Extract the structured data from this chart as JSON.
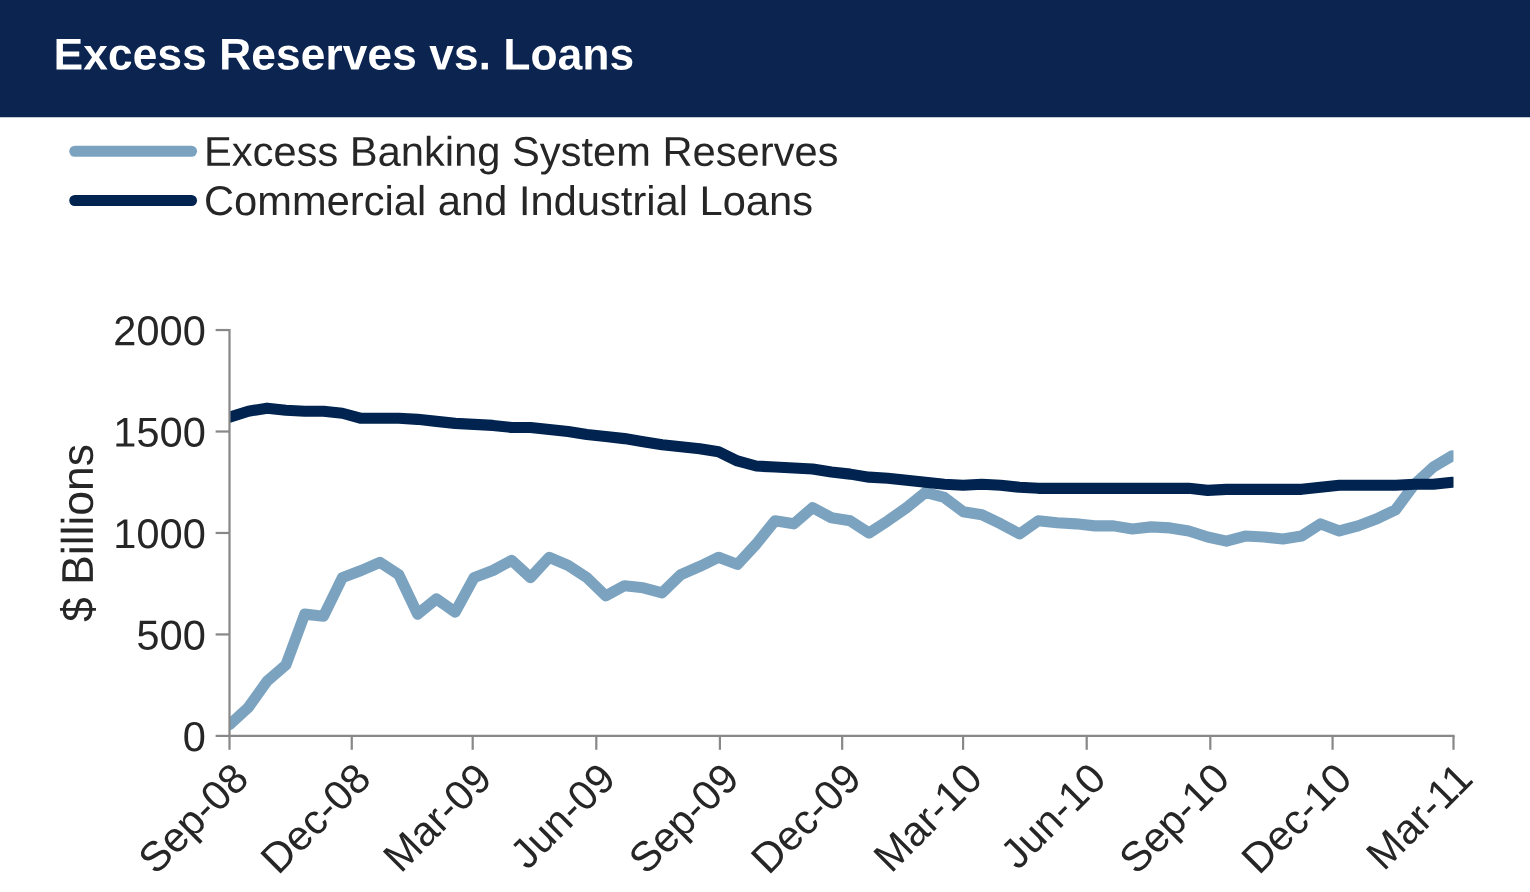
{
  "chart_data": {
    "type": "line",
    "title": "Excess Reserves vs. Loans",
    "ylabel": "$ Billions",
    "x": [
      "2008-09-01",
      "2008-09-15",
      "2008-09-29",
      "2008-10-13",
      "2008-10-27",
      "2008-11-10",
      "2008-11-24",
      "2008-12-08",
      "2008-12-22",
      "2009-01-05",
      "2009-01-19",
      "2009-02-02",
      "2009-02-16",
      "2009-03-02",
      "2009-03-16",
      "2009-03-30",
      "2009-04-13",
      "2009-04-27",
      "2009-05-11",
      "2009-05-25",
      "2009-06-08",
      "2009-06-22",
      "2009-07-06",
      "2009-07-20",
      "2009-08-03",
      "2009-08-17",
      "2009-08-31",
      "2009-09-14",
      "2009-09-28",
      "2009-10-12",
      "2009-10-26",
      "2009-11-09",
      "2009-11-23",
      "2009-12-07",
      "2009-12-21",
      "2010-01-04",
      "2010-01-18",
      "2010-02-01",
      "2010-02-15",
      "2010-03-01",
      "2010-03-15",
      "2010-03-29",
      "2010-04-12",
      "2010-04-26",
      "2010-05-10",
      "2010-05-24",
      "2010-06-07",
      "2010-06-21",
      "2010-07-05",
      "2010-07-19",
      "2010-08-02",
      "2010-08-16",
      "2010-08-30",
      "2010-09-13",
      "2010-09-27",
      "2010-10-11",
      "2010-10-25",
      "2010-11-08",
      "2010-11-22",
      "2010-12-06",
      "2010-12-20",
      "2011-01-03",
      "2011-01-17",
      "2011-01-31",
      "2011-02-14",
      "2011-02-28"
    ],
    "series": [
      {
        "name": "Excess Banking System Reserves",
        "color": "#7ba3c0",
        "values": [
          55,
          140,
          270,
          350,
          600,
          590,
          780,
          815,
          855,
          795,
          600,
          675,
          610,
          780,
          815,
          865,
          780,
          880,
          840,
          780,
          690,
          740,
          730,
          705,
          795,
          835,
          880,
          845,
          945,
          1060,
          1045,
          1125,
          1075,
          1060,
          1000,
          1060,
          1125,
          1200,
          1175,
          1105,
          1090,
          1045,
          995,
          1060,
          1050,
          1045,
          1035,
          1035,
          1020,
          1030,
          1025,
          1010,
          980,
          960,
          985,
          980,
          970,
          985,
          1045,
          1010,
          1035,
          1070,
          1115,
          1240,
          1325,
          1380
        ]
      },
      {
        "name": "Commercial and Industrial Loans",
        "color": "#00234f",
        "values": [
          1570,
          1600,
          1615,
          1605,
          1600,
          1600,
          1590,
          1565,
          1565,
          1565,
          1560,
          1550,
          1540,
          1535,
          1530,
          1520,
          1520,
          1510,
          1500,
          1485,
          1475,
          1465,
          1450,
          1435,
          1425,
          1415,
          1400,
          1355,
          1330,
          1325,
          1320,
          1315,
          1300,
          1290,
          1275,
          1270,
          1260,
          1250,
          1240,
          1235,
          1240,
          1235,
          1225,
          1220,
          1220,
          1220,
          1220,
          1220,
          1220,
          1220,
          1220,
          1220,
          1210,
          1215,
          1215,
          1215,
          1215,
          1215,
          1225,
          1235,
          1235,
          1235,
          1235,
          1240,
          1240,
          1250
        ]
      }
    ],
    "xlim": [
      "2008-09-01",
      "2011-03-01"
    ],
    "xticks": [
      {
        "value": "2008-09-01",
        "label": "Sep-08"
      },
      {
        "value": "2008-12-01",
        "label": "Dec-08"
      },
      {
        "value": "2009-03-01",
        "label": "Mar-09"
      },
      {
        "value": "2009-06-01",
        "label": "Jun-09"
      },
      {
        "value": "2009-09-01",
        "label": "Sep-09"
      },
      {
        "value": "2009-12-01",
        "label": "Dec-09"
      },
      {
        "value": "2010-03-01",
        "label": "Mar-10"
      },
      {
        "value": "2010-06-01",
        "label": "Jun-10"
      },
      {
        "value": "2010-09-01",
        "label": "Sep-10"
      },
      {
        "value": "2010-12-01",
        "label": "Dec-10"
      },
      {
        "value": "2011-03-01",
        "label": "Mar-11"
      }
    ],
    "ylim": [
      0,
      2000
    ],
    "yticks": [
      0,
      500,
      1000,
      1500,
      2000
    ],
    "grid": false,
    "legend": "top left",
    "marker": "none",
    "line_style": "solid"
  }
}
